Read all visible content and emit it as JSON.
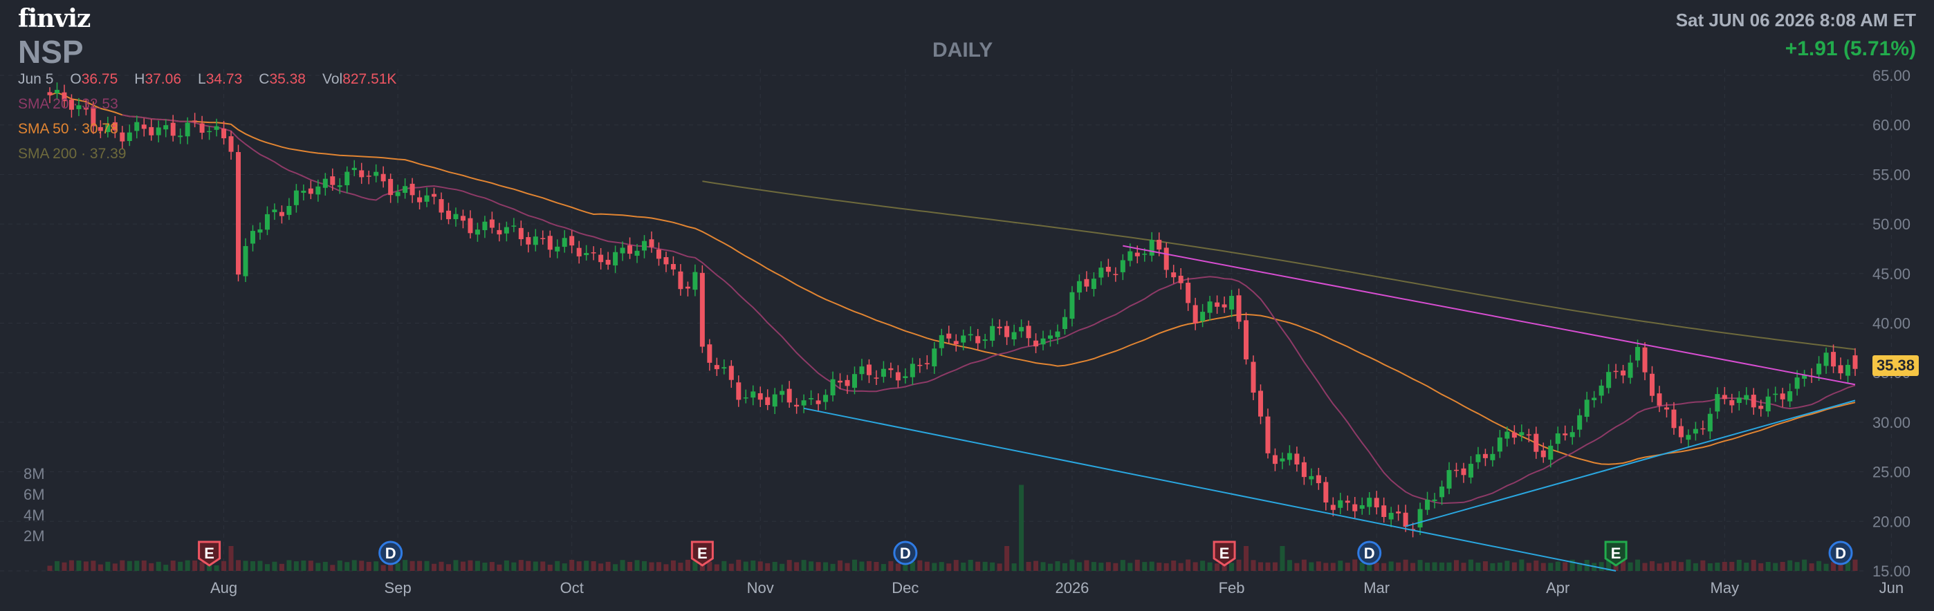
{
  "header": {
    "brand": "finviz",
    "ticker": "NSP",
    "period": "DAILY",
    "datetime": "Sat JUN 06 2026 8:08 AM ET",
    "change": "+1.91 (5.71%)"
  },
  "ohlc": {
    "date": "Jun 5",
    "open_label": "O",
    "open": "36.75",
    "high_label": "H",
    "high": "37.06",
    "low_label": "L",
    "low": "34.73",
    "close_label": "C",
    "close": "35.38",
    "vol_label": "Vol",
    "vol": "827.51K"
  },
  "indicators": {
    "sma20": {
      "label": "SMA 20",
      "value": "32.53",
      "color": "#8e3a67"
    },
    "sma50": {
      "label": "SMA 50",
      "value": "30.78",
      "color": "#e28532"
    },
    "sma200": {
      "label": "SMA 200",
      "value": "37.39",
      "color": "#6e6a3c"
    }
  },
  "price_tag": "35.38",
  "colors": {
    "up": "#22ab4c",
    "down": "#ee5562",
    "background": "#22262f",
    "upper_trendline": "#d84ed2",
    "lower_trendline": "#2aa7e0",
    "price_tag": "#f6c544"
  },
  "chart_data": {
    "type": "candlestick",
    "y_axis": {
      "min": 15,
      "max": 65,
      "ticks": [
        "15.00",
        "20.00",
        "25.00",
        "30.00",
        "35.00",
        "40.00",
        "45.00",
        "50.00",
        "55.00",
        "60.00",
        "65.00"
      ]
    },
    "volume_axis": {
      "ticks": [
        "2M",
        "4M",
        "6M",
        "8M"
      ]
    },
    "x_ticks": [
      "Aug",
      "Sep",
      "Oct",
      "Nov",
      "Dec",
      "2026",
      "Feb",
      "Mar",
      "Apr",
      "May",
      "Jun"
    ],
    "grid": true,
    "anchors": [
      [
        0,
        63
      ],
      [
        10,
        59
      ],
      [
        20,
        60
      ],
      [
        25,
        58
      ],
      [
        26,
        45
      ],
      [
        28,
        50
      ],
      [
        32,
        51
      ],
      [
        36,
        54
      ],
      [
        44,
        55
      ],
      [
        50,
        53
      ],
      [
        55,
        51
      ],
      [
        60,
        49.5
      ],
      [
        68,
        48.5
      ],
      [
        75,
        46.5
      ],
      [
        80,
        47.5
      ],
      [
        84,
        47
      ],
      [
        87,
        44
      ],
      [
        89,
        45
      ],
      [
        90,
        37
      ],
      [
        95,
        33
      ],
      [
        100,
        32.5
      ],
      [
        104,
        31.5
      ],
      [
        108,
        34
      ],
      [
        115,
        35
      ],
      [
        120,
        35.5
      ],
      [
        124,
        38.5
      ],
      [
        130,
        39
      ],
      [
        138,
        38.5
      ],
      [
        142,
        43.5
      ],
      [
        148,
        46.5
      ],
      [
        152,
        47.5
      ],
      [
        155,
        45
      ],
      [
        158,
        41
      ],
      [
        163,
        42
      ],
      [
        165,
        37
      ],
      [
        168,
        27
      ],
      [
        172,
        25.5
      ],
      [
        177,
        22
      ],
      [
        184,
        21
      ],
      [
        188,
        20
      ],
      [
        194,
        25
      ],
      [
        199,
        27.5
      ],
      [
        203,
        29
      ],
      [
        205,
        27
      ],
      [
        211,
        30
      ],
      [
        214,
        34
      ],
      [
        219,
        37
      ],
      [
        222,
        31
      ],
      [
        226,
        28.5
      ],
      [
        230,
        32
      ],
      [
        235,
        32
      ],
      [
        241,
        33.5
      ],
      [
        245,
        36.5
      ],
      [
        249,
        35.4
      ]
    ],
    "events": [
      {
        "label": "E",
        "type": "earnings",
        "bar": 22
      },
      {
        "label": "D",
        "type": "dividend",
        "bar": 47
      },
      {
        "label": "E",
        "type": "earnings",
        "bar": 90
      },
      {
        "label": "D",
        "type": "dividend",
        "bar": 118
      },
      {
        "label": "E",
        "type": "earnings",
        "bar": 162
      },
      {
        "label": "D",
        "type": "dividend",
        "bar": 182
      },
      {
        "label": "E",
        "type": "earnings",
        "bar": 216
      },
      {
        "label": "D",
        "type": "dividend",
        "bar": 247
      }
    ],
    "trendlines": [
      {
        "name": "upper",
        "from": [
          148,
          47.8
        ],
        "to": [
          249,
          33.8
        ]
      },
      {
        "name": "lower-down",
        "from": [
          104,
          31.4
        ],
        "to": [
          216,
          15
        ]
      },
      {
        "name": "lower-up",
        "from": [
          187,
          19.5
        ],
        "to": [
          249,
          32.2
        ]
      }
    ]
  }
}
